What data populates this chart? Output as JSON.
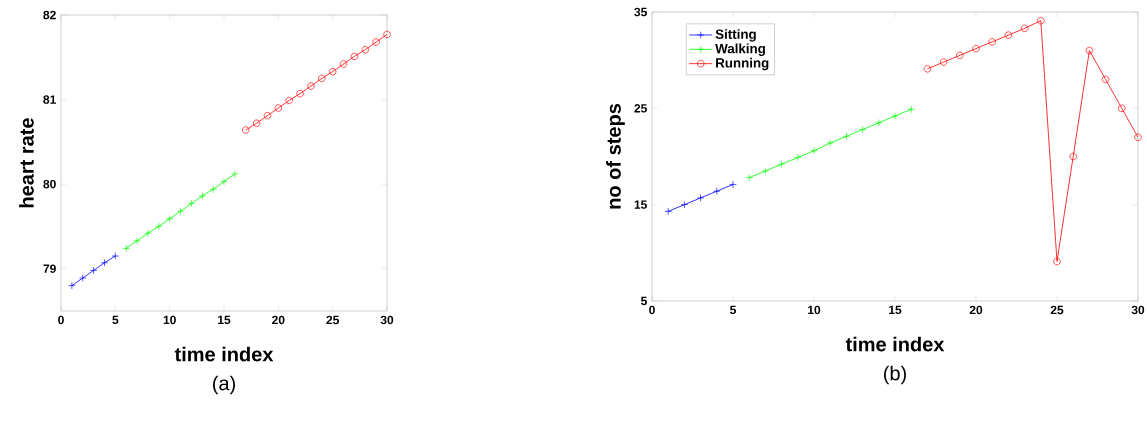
{
  "chart_data": [
    {
      "type": "line",
      "xlabel": "time index",
      "ylabel": "heart rate",
      "xlim": [
        0,
        30
      ],
      "xticks": [
        0,
        5,
        10,
        15,
        20,
        25,
        30
      ],
      "ylim": [
        78.5,
        82
      ],
      "yticks": [
        79,
        80,
        81,
        82
      ],
      "grid": false,
      "legend": false,
      "line_style": "solid",
      "annotations": [
        "(a)"
      ],
      "series": [
        {
          "color": "#0000ff",
          "marker": "cross",
          "x": [
            1,
            2,
            3,
            4,
            5
          ],
          "values": [
            78.8,
            78.89,
            78.98,
            79.07,
            79.15
          ]
        },
        {
          "color": "#00ff00",
          "marker": "cross",
          "x": [
            6,
            7,
            8,
            9,
            10,
            11,
            12,
            13,
            14,
            15,
            16
          ],
          "values": [
            79.24,
            79.33,
            79.42,
            79.5,
            79.59,
            79.68,
            79.77,
            79.86,
            79.94,
            80.03,
            80.12
          ]
        },
        {
          "color": "#ff0000",
          "marker": "circle",
          "x": [
            17,
            18,
            19,
            20,
            21,
            22,
            23,
            24,
            25,
            26,
            27,
            28,
            29,
            30
          ],
          "values": [
            80.64,
            80.72,
            80.81,
            80.9,
            80.99,
            81.07,
            81.16,
            81.25,
            81.33,
            81.42,
            81.51,
            81.59,
            81.68,
            81.77
          ]
        }
      ]
    },
    {
      "type": "line",
      "xlabel": "time index",
      "ylabel": "no of steps",
      "xlim": [
        0,
        30
      ],
      "xticks": [
        0,
        5,
        10,
        15,
        20,
        25,
        30
      ],
      "ylim": [
        5,
        35
      ],
      "yticks": [
        5,
        15,
        25,
        35
      ],
      "grid": false,
      "legend": "top left",
      "line_style": "solid",
      "annotations": [
        "(b)"
      ],
      "series": [
        {
          "name": "Sitting",
          "color": "#0000ff",
          "marker": "cross",
          "x": [
            1,
            2,
            3,
            4,
            5
          ],
          "values": [
            14.3,
            15.0,
            15.7,
            16.4,
            17.1
          ]
        },
        {
          "name": "Walking",
          "color": "#00ff00",
          "marker": "cross",
          "x": [
            6,
            7,
            8,
            9,
            10,
            11,
            12,
            13,
            14,
            15,
            16
          ],
          "values": [
            17.8,
            18.5,
            19.2,
            19.9,
            20.6,
            21.4,
            22.1,
            22.8,
            23.5,
            24.2,
            24.9
          ]
        },
        {
          "name": "Running",
          "color": "#ff0000",
          "marker": "circle",
          "x": [
            17,
            18,
            19,
            20,
            21,
            22,
            23,
            24,
            25,
            26,
            27,
            28,
            29,
            30
          ],
          "values": [
            29.1,
            29.8,
            30.5,
            31.2,
            31.9,
            32.6,
            33.3,
            34.1,
            9.1,
            20.0,
            31.0,
            28.0,
            25.0,
            22.0
          ]
        }
      ]
    }
  ]
}
